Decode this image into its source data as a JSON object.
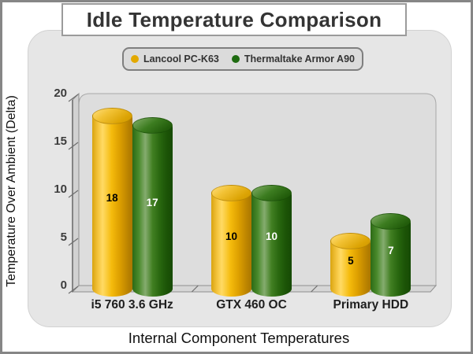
{
  "title": "Idle Temperature Comparison",
  "legend": {
    "items": [
      {
        "label": "Lancool PC-K63",
        "color": "#e3a900"
      },
      {
        "label": "Thermaltake Armor A90",
        "color": "#1e6b10"
      }
    ]
  },
  "y_axis": {
    "title": "Temperature Over Ambient (Delta)",
    "ticks": [
      0,
      5,
      10,
      15,
      20
    ]
  },
  "x_axis": {
    "title": "Internal Component Temperatures"
  },
  "colors": {
    "panel_bg": "#e6e6e6",
    "wall_bg": "#dddddd",
    "floor_bg": "#d6d6d6",
    "frame_line": "#8f8f8f",
    "series_yellow": "#f5b800",
    "series_green": "#2a7212"
  },
  "chart_data": {
    "type": "bar",
    "title": "Idle Temperature Comparison",
    "categories": [
      "i5 760 3.6 GHz",
      "GTX 460 OC",
      "Primary HDD"
    ],
    "series": [
      {
        "name": "Lancool PC-K63",
        "color": "#f5b800",
        "label_color": "#000000",
        "values": [
          18,
          10,
          5
        ]
      },
      {
        "name": "Thermaltake Armor A90",
        "color": "#2a7212",
        "label_color": "#ffffff",
        "values": [
          17,
          10,
          7
        ]
      }
    ],
    "xlabel": "Internal Component Temperatures",
    "ylabel": "Temperature Over Ambient (Delta)",
    "ylim": [
      0,
      20
    ],
    "ytick_step": 5,
    "grid": false,
    "legend_position": "top",
    "style": "3d-cylinder"
  }
}
